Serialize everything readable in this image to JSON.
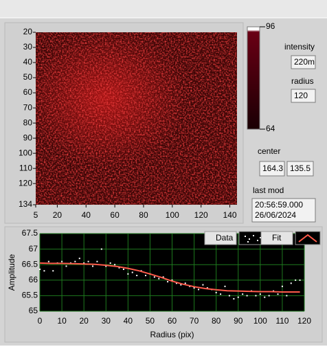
{
  "chart_data": [
    {
      "type": "heatmap",
      "xlim": [
        5,
        145
      ],
      "xticks": [
        5,
        20,
        40,
        60,
        80,
        100,
        120,
        140
      ],
      "ylim": [
        20,
        134
      ],
      "yticks": [
        20,
        30,
        40,
        50,
        60,
        70,
        80,
        90,
        100,
        110,
        120,
        134
      ],
      "zlim": [
        64,
        96
      ],
      "zticks": [
        64,
        96
      ]
    },
    {
      "type": "line",
      "xlabel": "Radius (pix)",
      "ylabel": "Amplitude",
      "xlim": [
        0,
        120
      ],
      "xticks": [
        0,
        10,
        20,
        30,
        40,
        50,
        60,
        70,
        80,
        90,
        100,
        110,
        120
      ],
      "ylim": [
        65,
        67.5
      ],
      "yticks": [
        65,
        65.5,
        66,
        66.5,
        67,
        67.5
      ],
      "grid": true,
      "series": [
        {
          "name": "Data",
          "color": "#ffffff",
          "mode": "markers",
          "x": [
            0,
            2,
            4,
            6,
            8,
            10,
            12,
            14,
            16,
            18,
            20,
            22,
            24,
            26,
            28,
            30,
            32,
            34,
            36,
            38,
            40,
            42,
            44,
            46,
            48,
            50,
            52,
            54,
            56,
            58,
            60,
            62,
            64,
            66,
            68,
            70,
            72,
            74,
            76,
            78,
            80,
            82,
            84,
            86,
            88,
            90,
            92,
            94,
            96,
            98,
            100,
            102,
            104,
            106,
            108,
            110,
            112,
            114,
            116,
            118
          ],
          "values": [
            66.35,
            66.3,
            66.6,
            66.3,
            66.55,
            66.6,
            66.45,
            66.55,
            66.6,
            66.7,
            66.55,
            66.6,
            66.45,
            66.6,
            67.0,
            66.45,
            66.55,
            66.5,
            66.4,
            66.35,
            66.2,
            66.25,
            66.15,
            66.3,
            66.15,
            66.2,
            66.1,
            66.05,
            66.1,
            65.95,
            66.0,
            65.9,
            65.85,
            65.9,
            65.8,
            65.75,
            65.7,
            65.85,
            65.75,
            65.7,
            65.6,
            65.55,
            65.8,
            65.5,
            65.4,
            65.45,
            65.55,
            65.5,
            65.65,
            65.5,
            65.55,
            65.45,
            65.5,
            65.65,
            65.55,
            65.8,
            65.5,
            65.9,
            66.0,
            66.0
          ]
        },
        {
          "name": "Fit",
          "color": "#ff5a4a",
          "mode": "lines",
          "x": [
            0,
            5,
            10,
            15,
            20,
            25,
            30,
            35,
            40,
            45,
            50,
            55,
            60,
            65,
            70,
            75,
            80,
            85,
            90,
            95,
            100,
            105,
            110,
            115,
            118
          ],
          "values": [
            66.55,
            66.54,
            66.54,
            66.53,
            66.52,
            66.51,
            66.48,
            66.44,
            66.38,
            66.3,
            66.2,
            66.09,
            65.97,
            65.87,
            65.79,
            65.73,
            65.69,
            65.66,
            65.65,
            65.64,
            65.63,
            65.63,
            65.62,
            65.62,
            65.62
          ]
        }
      ]
    }
  ],
  "controls": {
    "intensity": {
      "label": "intensity",
      "value": "220m"
    },
    "radius": {
      "label": "radius",
      "value": 120
    },
    "center": {
      "label": "center",
      "values": [
        164.3,
        135.5
      ]
    },
    "last_mod": {
      "label": "last mod",
      "lines": [
        "20:56:59.000",
        "26/06/2024"
      ]
    }
  }
}
